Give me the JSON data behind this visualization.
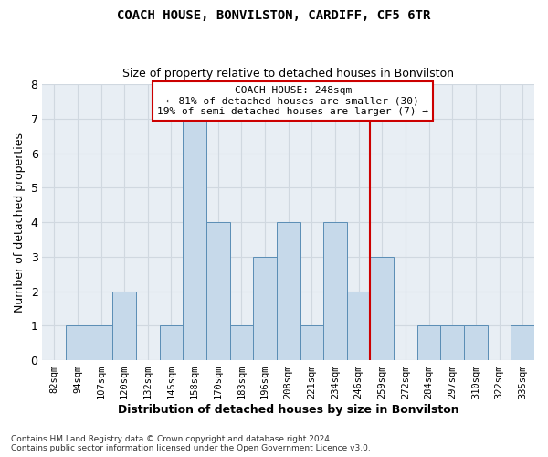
{
  "title": "COACH HOUSE, BONVILSTON, CARDIFF, CF5 6TR",
  "subtitle": "Size of property relative to detached houses in Bonvilston",
  "xlabel": "Distribution of detached houses by size in Bonvilston",
  "ylabel": "Number of detached properties",
  "categories": [
    "82sqm",
    "94sqm",
    "107sqm",
    "120sqm",
    "132sqm",
    "145sqm",
    "158sqm",
    "170sqm",
    "183sqm",
    "196sqm",
    "208sqm",
    "221sqm",
    "234sqm",
    "246sqm",
    "259sqm",
    "272sqm",
    "284sqm",
    "297sqm",
    "310sqm",
    "322sqm",
    "335sqm"
  ],
  "values": [
    0,
    1,
    1,
    2,
    0,
    1,
    7,
    4,
    1,
    3,
    4,
    1,
    4,
    2,
    3,
    0,
    1,
    1,
    1,
    0,
    1
  ],
  "bar_color": "#c6d9ea",
  "bar_edge_color": "#5a8db5",
  "grid_color": "#d0d8e0",
  "background_color": "#e8eef4",
  "vline_color": "#cc0000",
  "annotation_text": "COACH HOUSE: 248sqm\n← 81% of detached houses are smaller (30)\n19% of semi-detached houses are larger (7) →",
  "annotation_box_edgecolor": "#cc0000",
  "ylim": [
    0,
    8
  ],
  "yticks": [
    0,
    1,
    2,
    3,
    4,
    5,
    6,
    7,
    8
  ],
  "footnote": "Contains HM Land Registry data © Crown copyright and database right 2024.\nContains public sector information licensed under the Open Government Licence v3.0.",
  "title_fontsize": 10,
  "subtitle_fontsize": 9,
  "ylabel_fontsize": 9,
  "xlabel_fontsize": 9,
  "tick_fontsize": 7.5,
  "footnote_fontsize": 6.5,
  "annotation_fontsize": 8
}
